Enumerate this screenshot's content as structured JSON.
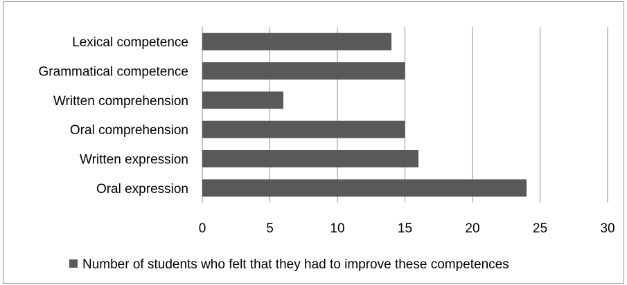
{
  "chart_data": {
    "type": "bar",
    "orientation": "horizontal",
    "categories": [
      "Lexical competence",
      "Grammatical competence",
      "Written comprehension",
      "Oral comprehension",
      "Written expression",
      "Oral expression"
    ],
    "series": [
      {
        "name": "Number of students who felt that they had to improve these competences",
        "values": [
          14,
          15,
          6,
          15,
          16,
          24
        ],
        "color": "#595959"
      }
    ],
    "xlim": [
      0,
      30
    ],
    "x_ticks": [
      "0",
      "5",
      "10",
      "15",
      "20",
      "25",
      "30"
    ],
    "x_tick_values": [
      0,
      5,
      10,
      15,
      20,
      25,
      30
    ],
    "grid": "vertical",
    "legend_position": "bottom"
  }
}
